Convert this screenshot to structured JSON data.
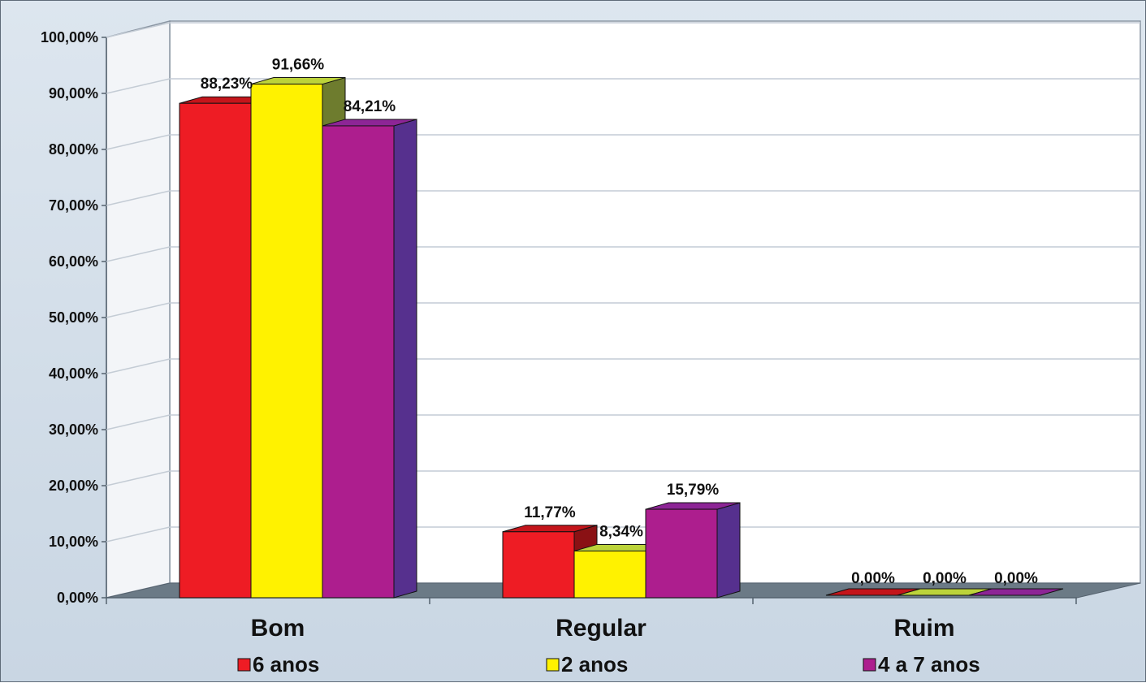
{
  "chart_data": {
    "type": "bar",
    "categories": [
      "Bom",
      "Regular",
      "Ruim"
    ],
    "series": [
      {
        "name": "6 anos",
        "values": [
          88.23,
          11.77,
          0.0
        ],
        "labels": [
          "88,23%",
          "11,77%",
          "0,00%"
        ],
        "color": "#ee1c24",
        "side_color": "#8a1114",
        "top_color": "#c4151b"
      },
      {
        "name": "2 anos",
        "values": [
          91.66,
          8.34,
          0.0
        ],
        "labels": [
          "91,66%",
          "8,34%",
          "0,00%"
        ],
        "color": "#fff200",
        "side_color": "#6e7c2e",
        "top_color": "#bcd33a"
      },
      {
        "name": "4 a 7 anos",
        "values": [
          84.21,
          15.79,
          0.0
        ],
        "labels": [
          "84,21%",
          "15,79%",
          "0,00%"
        ],
        "color": "#ad1e8e",
        "side_color": "#56308e",
        "top_color": "#8d2596"
      }
    ],
    "yticks": [
      "0,00%",
      "10,00%",
      "20,00%",
      "30,00%",
      "40,00%",
      "50,00%",
      "60,00%",
      "70,00%",
      "80,00%",
      "90,00%",
      "100,00%"
    ],
    "ylim": [
      0,
      100
    ],
    "grid": true,
    "legend_position": "bottom",
    "title": "",
    "xlabel": "",
    "ylabel": ""
  }
}
